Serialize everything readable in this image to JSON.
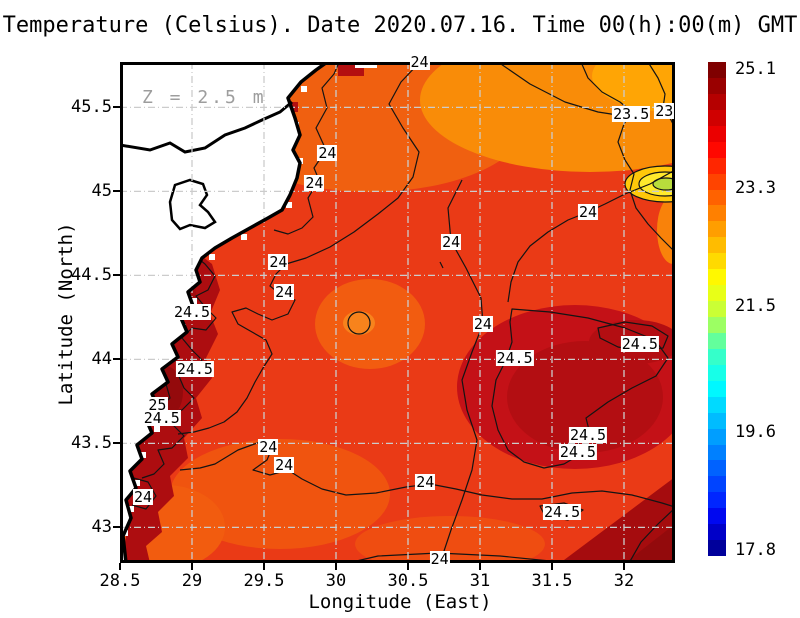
{
  "title": "Temperature (Celsius). Date 2020.07.16. Time 00(h):00(m) GMT",
  "annotation": "Z = 2.5 m",
  "axes": {
    "x": {
      "label": "Longitude (East)",
      "ticks": [
        "28.5",
        "29",
        "29.5",
        "30",
        "30.5",
        "31",
        "31.5",
        "32"
      ]
    },
    "y": {
      "label": "Latitude (North)",
      "ticks": [
        "45.5",
        "45",
        "44.5",
        "44",
        "43.5",
        "43"
      ]
    }
  },
  "colorbar": {
    "tick_labels": [
      "25.1",
      "23.3",
      "21.5",
      "19.6",
      "17.8"
    ],
    "vmax": 25.1,
    "vmin": 17.8,
    "colors": [
      "#7f0000",
      "#9a0000",
      "#b50000",
      "#d00000",
      "#eb0000",
      "#ff0800",
      "#ff2600",
      "#ff4400",
      "#ff6200",
      "#ff8000",
      "#ff9e00",
      "#ffbc00",
      "#ffda00",
      "#fff800",
      "#e8ff17",
      "#caff35",
      "#9cff63",
      "#63ff9c",
      "#35ffca",
      "#17ffe8",
      "#00f8ff",
      "#00daff",
      "#00bcff",
      "#009eff",
      "#0080ff",
      "#0062ff",
      "#0044ff",
      "#0026ff",
      "#0008f0",
      "#0000c8",
      "#00009b"
    ]
  },
  "chart_data": {
    "type": "heatmap",
    "title": "Temperature (Celsius). Date 2020.07.16. Time 00(h):00(m) GMT",
    "xlabel": "Longitude (East)",
    "ylabel": "Latitude (North)",
    "xlim": [
      28.5,
      32.35
    ],
    "ylim": [
      42.79,
      45.77
    ],
    "grid": true,
    "legend_position": "right-colorbar",
    "depth_annotation": "Z = 2.5 m",
    "units": "Celsius",
    "colorbar_ticks": [
      25.1,
      23.3,
      21.5,
      19.6,
      17.8
    ],
    "contour_interval": 0.5,
    "contour_labels": [
      {
        "value": "24",
        "lon": 30.58,
        "lat": 45.77
      },
      {
        "value": "23.5",
        "lon": 32.05,
        "lat": 45.46
      },
      {
        "value": "23",
        "lon": 32.28,
        "lat": 45.48
      },
      {
        "value": "24",
        "lon": 29.94,
        "lat": 45.23
      },
      {
        "value": "24",
        "lon": 29.85,
        "lat": 45.05
      },
      {
        "value": "24",
        "lon": 31.75,
        "lat": 44.88
      },
      {
        "value": "24",
        "lon": 30.8,
        "lat": 44.7
      },
      {
        "value": "24",
        "lon": 29.6,
        "lat": 44.58
      },
      {
        "value": "24",
        "lon": 29.64,
        "lat": 44.4
      },
      {
        "value": "24.5",
        "lon": 29.0,
        "lat": 44.28
      },
      {
        "value": "24",
        "lon": 31.02,
        "lat": 44.21
      },
      {
        "value": "24.5",
        "lon": 32.11,
        "lat": 44.09
      },
      {
        "value": "24.5",
        "lon": 31.24,
        "lat": 44.01
      },
      {
        "value": "24.5",
        "lon": 29.02,
        "lat": 43.94
      },
      {
        "value": "25",
        "lon": 28.76,
        "lat": 43.73
      },
      {
        "value": "24.5",
        "lon": 28.79,
        "lat": 43.65
      },
      {
        "value": "24",
        "lon": 29.53,
        "lat": 43.48
      },
      {
        "value": "24",
        "lon": 29.64,
        "lat": 43.37
      },
      {
        "value": "24",
        "lon": 28.66,
        "lat": 43.18
      },
      {
        "value": "24",
        "lon": 30.62,
        "lat": 43.27
      },
      {
        "value": "24.5",
        "lon": 31.75,
        "lat": 43.55
      },
      {
        "value": "24.5",
        "lon": 31.68,
        "lat": 43.45
      },
      {
        "value": "24.5",
        "lon": 31.57,
        "lat": 43.09
      },
      {
        "value": "24",
        "lon": 30.72,
        "lat": 42.81
      }
    ]
  }
}
